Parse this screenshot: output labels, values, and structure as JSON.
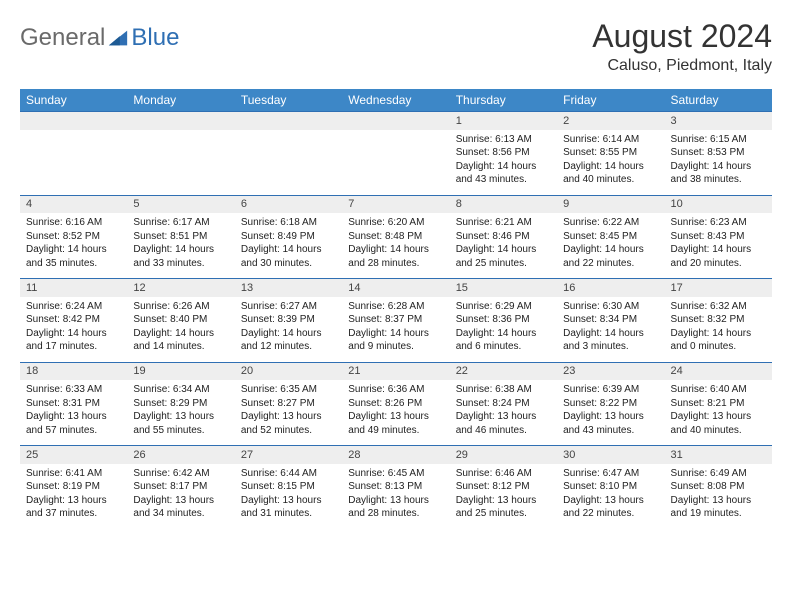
{
  "brand": {
    "part1": "General",
    "part2": "Blue"
  },
  "title": "August 2024",
  "location": "Caluso, Piedmont, Italy",
  "colors": {
    "header_bg": "#3d87c7",
    "header_text": "#ffffff",
    "daynum_bg": "#eeeeee",
    "border": "#2f6fb3",
    "body_text": "#222222",
    "brand_gray": "#6a6a6a",
    "brand_blue": "#2f6fb3"
  },
  "day_headers": [
    "Sunday",
    "Monday",
    "Tuesday",
    "Wednesday",
    "Thursday",
    "Friday",
    "Saturday"
  ],
  "weeks": [
    {
      "nums": [
        "",
        "",
        "",
        "",
        "1",
        "2",
        "3"
      ],
      "cells": [
        null,
        null,
        null,
        null,
        {
          "sunrise": "Sunrise: 6:13 AM",
          "sunset": "Sunset: 8:56 PM",
          "day1": "Daylight: 14 hours",
          "day2": "and 43 minutes."
        },
        {
          "sunrise": "Sunrise: 6:14 AM",
          "sunset": "Sunset: 8:55 PM",
          "day1": "Daylight: 14 hours",
          "day2": "and 40 minutes."
        },
        {
          "sunrise": "Sunrise: 6:15 AM",
          "sunset": "Sunset: 8:53 PM",
          "day1": "Daylight: 14 hours",
          "day2": "and 38 minutes."
        }
      ]
    },
    {
      "nums": [
        "4",
        "5",
        "6",
        "7",
        "8",
        "9",
        "10"
      ],
      "cells": [
        {
          "sunrise": "Sunrise: 6:16 AM",
          "sunset": "Sunset: 8:52 PM",
          "day1": "Daylight: 14 hours",
          "day2": "and 35 minutes."
        },
        {
          "sunrise": "Sunrise: 6:17 AM",
          "sunset": "Sunset: 8:51 PM",
          "day1": "Daylight: 14 hours",
          "day2": "and 33 minutes."
        },
        {
          "sunrise": "Sunrise: 6:18 AM",
          "sunset": "Sunset: 8:49 PM",
          "day1": "Daylight: 14 hours",
          "day2": "and 30 minutes."
        },
        {
          "sunrise": "Sunrise: 6:20 AM",
          "sunset": "Sunset: 8:48 PM",
          "day1": "Daylight: 14 hours",
          "day2": "and 28 minutes."
        },
        {
          "sunrise": "Sunrise: 6:21 AM",
          "sunset": "Sunset: 8:46 PM",
          "day1": "Daylight: 14 hours",
          "day2": "and 25 minutes."
        },
        {
          "sunrise": "Sunrise: 6:22 AM",
          "sunset": "Sunset: 8:45 PM",
          "day1": "Daylight: 14 hours",
          "day2": "and 22 minutes."
        },
        {
          "sunrise": "Sunrise: 6:23 AM",
          "sunset": "Sunset: 8:43 PM",
          "day1": "Daylight: 14 hours",
          "day2": "and 20 minutes."
        }
      ]
    },
    {
      "nums": [
        "11",
        "12",
        "13",
        "14",
        "15",
        "16",
        "17"
      ],
      "cells": [
        {
          "sunrise": "Sunrise: 6:24 AM",
          "sunset": "Sunset: 8:42 PM",
          "day1": "Daylight: 14 hours",
          "day2": "and 17 minutes."
        },
        {
          "sunrise": "Sunrise: 6:26 AM",
          "sunset": "Sunset: 8:40 PM",
          "day1": "Daylight: 14 hours",
          "day2": "and 14 minutes."
        },
        {
          "sunrise": "Sunrise: 6:27 AM",
          "sunset": "Sunset: 8:39 PM",
          "day1": "Daylight: 14 hours",
          "day2": "and 12 minutes."
        },
        {
          "sunrise": "Sunrise: 6:28 AM",
          "sunset": "Sunset: 8:37 PM",
          "day1": "Daylight: 14 hours",
          "day2": "and 9 minutes."
        },
        {
          "sunrise": "Sunrise: 6:29 AM",
          "sunset": "Sunset: 8:36 PM",
          "day1": "Daylight: 14 hours",
          "day2": "and 6 minutes."
        },
        {
          "sunrise": "Sunrise: 6:30 AM",
          "sunset": "Sunset: 8:34 PM",
          "day1": "Daylight: 14 hours",
          "day2": "and 3 minutes."
        },
        {
          "sunrise": "Sunrise: 6:32 AM",
          "sunset": "Sunset: 8:32 PM",
          "day1": "Daylight: 14 hours",
          "day2": "and 0 minutes."
        }
      ]
    },
    {
      "nums": [
        "18",
        "19",
        "20",
        "21",
        "22",
        "23",
        "24"
      ],
      "cells": [
        {
          "sunrise": "Sunrise: 6:33 AM",
          "sunset": "Sunset: 8:31 PM",
          "day1": "Daylight: 13 hours",
          "day2": "and 57 minutes."
        },
        {
          "sunrise": "Sunrise: 6:34 AM",
          "sunset": "Sunset: 8:29 PM",
          "day1": "Daylight: 13 hours",
          "day2": "and 55 minutes."
        },
        {
          "sunrise": "Sunrise: 6:35 AM",
          "sunset": "Sunset: 8:27 PM",
          "day1": "Daylight: 13 hours",
          "day2": "and 52 minutes."
        },
        {
          "sunrise": "Sunrise: 6:36 AM",
          "sunset": "Sunset: 8:26 PM",
          "day1": "Daylight: 13 hours",
          "day2": "and 49 minutes."
        },
        {
          "sunrise": "Sunrise: 6:38 AM",
          "sunset": "Sunset: 8:24 PM",
          "day1": "Daylight: 13 hours",
          "day2": "and 46 minutes."
        },
        {
          "sunrise": "Sunrise: 6:39 AM",
          "sunset": "Sunset: 8:22 PM",
          "day1": "Daylight: 13 hours",
          "day2": "and 43 minutes."
        },
        {
          "sunrise": "Sunrise: 6:40 AM",
          "sunset": "Sunset: 8:21 PM",
          "day1": "Daylight: 13 hours",
          "day2": "and 40 minutes."
        }
      ]
    },
    {
      "nums": [
        "25",
        "26",
        "27",
        "28",
        "29",
        "30",
        "31"
      ],
      "cells": [
        {
          "sunrise": "Sunrise: 6:41 AM",
          "sunset": "Sunset: 8:19 PM",
          "day1": "Daylight: 13 hours",
          "day2": "and 37 minutes."
        },
        {
          "sunrise": "Sunrise: 6:42 AM",
          "sunset": "Sunset: 8:17 PM",
          "day1": "Daylight: 13 hours",
          "day2": "and 34 minutes."
        },
        {
          "sunrise": "Sunrise: 6:44 AM",
          "sunset": "Sunset: 8:15 PM",
          "day1": "Daylight: 13 hours",
          "day2": "and 31 minutes."
        },
        {
          "sunrise": "Sunrise: 6:45 AM",
          "sunset": "Sunset: 8:13 PM",
          "day1": "Daylight: 13 hours",
          "day2": "and 28 minutes."
        },
        {
          "sunrise": "Sunrise: 6:46 AM",
          "sunset": "Sunset: 8:12 PM",
          "day1": "Daylight: 13 hours",
          "day2": "and 25 minutes."
        },
        {
          "sunrise": "Sunrise: 6:47 AM",
          "sunset": "Sunset: 8:10 PM",
          "day1": "Daylight: 13 hours",
          "day2": "and 22 minutes."
        },
        {
          "sunrise": "Sunrise: 6:49 AM",
          "sunset": "Sunset: 8:08 PM",
          "day1": "Daylight: 13 hours",
          "day2": "and 19 minutes."
        }
      ]
    }
  ]
}
